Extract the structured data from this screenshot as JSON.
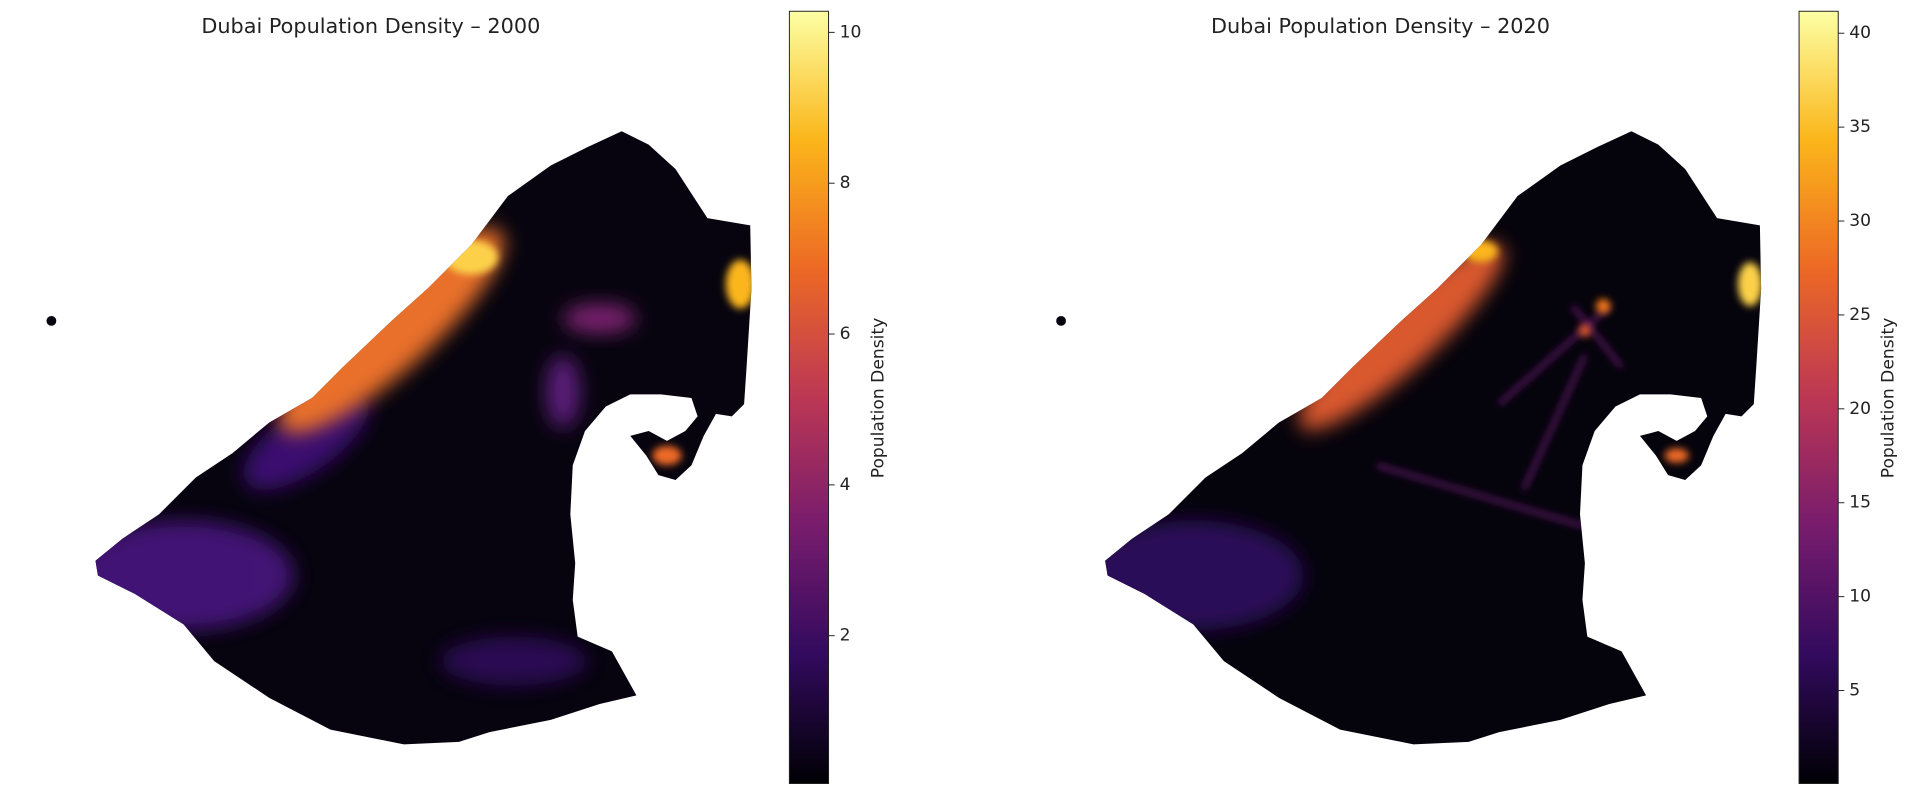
{
  "chart_data": [
    {
      "type": "heatmap",
      "title": "Dubai Population Density – 2000",
      "colorbar_label": "Population Density",
      "colormap": "inferno",
      "colors": [
        "#000004",
        "#320a5e",
        "#781c6d",
        "#bc3754",
        "#ed6925",
        "#fbb61a",
        "#fcffa4"
      ],
      "clim": [
        0.04,
        10.28
      ],
      "cticks": [
        2,
        4,
        6,
        8,
        10
      ]
    },
    {
      "type": "heatmap",
      "title": "Dubai Population Density – 2020",
      "colorbar_label": "Population Density",
      "colormap": "inferno",
      "colors": [
        "#000004",
        "#320a5e",
        "#781c6d",
        "#bc3754",
        "#ed6925",
        "#fbb61a",
        "#fcffa4"
      ],
      "clim": [
        0.05,
        41.17
      ],
      "cticks": [
        5,
        10,
        15,
        20,
        25,
        30,
        35,
        40
      ]
    }
  ]
}
